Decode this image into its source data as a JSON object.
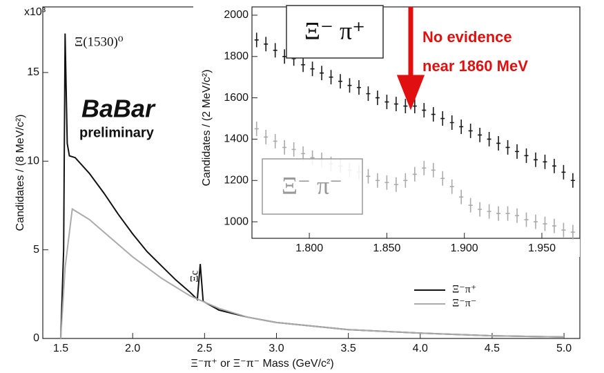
{
  "chart_data": [
    {
      "type": "line",
      "y_multiplier": "x10³",
      "ylabel": "Candidates / (8 MeV/c²)",
      "xlabel": "Ξ⁻π⁺ or Ξ⁻π⁻ Mass   (GeV/c²)",
      "xlim": [
        1.375,
        5.11
      ],
      "ylim": [
        0,
        18.7
      ],
      "xticks": [
        1.5,
        {
          "value": 2,
          "label": "2.0"
        },
        2.5,
        {
          "value": 3,
          "label": "3.0"
        },
        3.5,
        {
          "value": 4,
          "label": "4.0"
        },
        4.5,
        {
          "value": 5,
          "label": "5.0"
        }
      ],
      "yticks": [
        0,
        5,
        10,
        15
      ],
      "legend": "lower right",
      "annotations": [
        "Ξ(1530)⁰",
        "Ξc",
        "BaBar",
        "preliminary"
      ],
      "series": [
        {
          "name": "Ξ⁻π⁺",
          "color": "#111111",
          "x": [
            1.5,
            1.52,
            1.53,
            1.545,
            1.56,
            1.6,
            1.7,
            1.8,
            1.9,
            2.0,
            2.1,
            2.2,
            2.3,
            2.4,
            2.45,
            2.47,
            2.49,
            2.6,
            2.8,
            3.0,
            3.5,
            4.0,
            4.5,
            5.0
          ],
          "values": [
            0,
            5,
            17.2,
            11,
            10.3,
            10.2,
            9.3,
            8.2,
            7,
            5.9,
            4.9,
            4.1,
            3.3,
            2.6,
            2.2,
            4.2,
            2.1,
            1.6,
            1.2,
            0.9,
            0.5,
            0.3,
            0.15,
            0.08
          ]
        },
        {
          "name": "Ξ⁻π⁻",
          "color": "#aaaaaa",
          "x": [
            1.5,
            1.53,
            1.58,
            1.7,
            1.8,
            2.0,
            2.2,
            2.4,
            2.6,
            2.8,
            3.0,
            3.5,
            4.0,
            4.5,
            5.0
          ],
          "values": [
            0,
            4,
            7.3,
            6.7,
            6.0,
            4.6,
            3.4,
            2.4,
            1.7,
            1.2,
            0.9,
            0.5,
            0.3,
            0.15,
            0.08
          ]
        }
      ]
    },
    {
      "type": "errorbar",
      "ylabel": "Candidates / (2 MeV/c²)",
      "xlim": [
        1.763,
        1.9745
      ],
      "ylim": [
        920,
        2040
      ],
      "xticks": [
        {
          "value": 1.8,
          "label": "1.800"
        },
        {
          "value": 1.85,
          "label": "1.850"
        },
        {
          "value": 1.9,
          "label": "1.900"
        },
        {
          "value": 1.95,
          "label": "1.950"
        }
      ],
      "yticks": [
        1000,
        1200,
        1400,
        1600,
        1800,
        2000
      ],
      "annotations": [
        "Ξ⁻ π⁺",
        "Ξ⁻ π⁻",
        "No evidence",
        "near 1860 MeV"
      ],
      "x": [
        1.766,
        1.772,
        1.778,
        1.784,
        1.79,
        1.796,
        1.802,
        1.808,
        1.814,
        1.82,
        1.826,
        1.832,
        1.838,
        1.844,
        1.85,
        1.856,
        1.862,
        1.868,
        1.874,
        1.88,
        1.886,
        1.892,
        1.898,
        1.904,
        1.91,
        1.916,
        1.922,
        1.928,
        1.934,
        1.94,
        1.946,
        1.952,
        1.958,
        1.964,
        1.97
      ],
      "series": [
        {
          "name": "Ξ⁻π⁺",
          "color": "#1a1a1a",
          "error": 35,
          "values": [
            1880,
            1860,
            1830,
            1800,
            1790,
            1760,
            1740,
            1720,
            1700,
            1680,
            1660,
            1650,
            1620,
            1600,
            1580,
            1570,
            1560,
            1560,
            1540,
            1520,
            1500,
            1480,
            1460,
            1440,
            1420,
            1400,
            1380,
            1360,
            1340,
            1320,
            1300,
            1290,
            1270,
            1240,
            1200
          ]
        },
        {
          "name": "Ξ⁻π⁻",
          "color": "#aaaaaa",
          "error": 35,
          "values": [
            1450,
            1410,
            1390,
            1360,
            1350,
            1330,
            1310,
            1300,
            1280,
            1270,
            1250,
            1240,
            1220,
            1200,
            1190,
            1180,
            1200,
            1230,
            1260,
            1250,
            1210,
            1170,
            1120,
            1080,
            1060,
            1050,
            1040,
            1040,
            1030,
            1010,
            1000,
            990,
            980,
            960,
            950
          ]
        }
      ]
    }
  ]
}
